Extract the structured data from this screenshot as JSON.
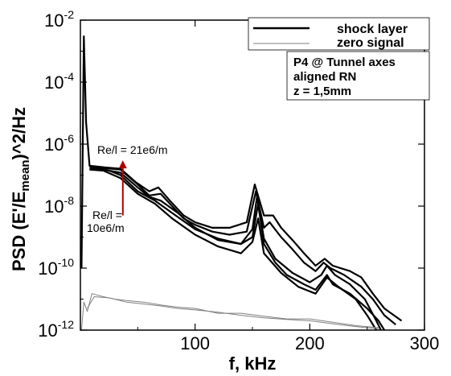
{
  "chart_data": {
    "type": "line",
    "xlabel": "f, kHz",
    "ylabel_parts": {
      "pre": "PSD (E'/E",
      "sub": "mean",
      "post": ")^2/Hz"
    },
    "xlim": [
      0,
      300
    ],
    "ylim": [
      1e-12,
      0.01
    ],
    "yscale": "log",
    "x_ticks": [
      100,
      200,
      300
    ],
    "y_ticks": [
      {
        "base": "10",
        "exp": "-2",
        "value": 0.01
      },
      {
        "base": "10",
        "exp": "-4",
        "value": 0.0001
      },
      {
        "base": "10",
        "exp": "-6",
        "value": 1e-06
      },
      {
        "base": "10",
        "exp": "-8",
        "value": 1e-08
      },
      {
        "base": "10",
        "exp": "-10",
        "value": 1e-10
      },
      {
        "base": "10",
        "exp": "-12",
        "value": 1e-12
      }
    ],
    "legend": {
      "position": "top-right",
      "entries": [
        {
          "label": "shock layer",
          "color": "#000000",
          "width": 2.5
        },
        {
          "label": "zero signal",
          "color": "#808080",
          "width": 1
        }
      ]
    },
    "info_box": [
      "P4 @ Tunnel axes",
      "aligned RN",
      "z = 1,5mm"
    ],
    "annotations": {
      "upper": "Re/l = 21e6/m",
      "lower_1": "Re/l =",
      "lower_2": "10e6/m",
      "arrow": {
        "x": 37,
        "y_from": 5e-09,
        "y_to": 3e-07,
        "color": "#b00000"
      }
    },
    "series": [
      {
        "style": "shock",
        "color": "#000000",
        "points": [
          [
            1,
            1e-10
          ],
          [
            3,
            0.003
          ],
          [
            5,
            5e-06
          ],
          [
            8,
            2e-07
          ],
          [
            15,
            1.7e-07
          ],
          [
            25,
            1.4e-07
          ],
          [
            35,
            1e-07
          ],
          [
            50,
            3e-08
          ],
          [
            65,
            1.5e-08
          ],
          [
            80,
            6e-09
          ],
          [
            100,
            1.8e-09
          ],
          [
            120,
            9e-10
          ],
          [
            140,
            6e-10
          ],
          [
            150,
            1e-09
          ],
          [
            155,
            1.2e-08
          ],
          [
            160,
            6e-10
          ],
          [
            170,
            1.5e-10
          ],
          [
            180,
            6e-11
          ],
          [
            195,
            3e-11
          ],
          [
            205,
            2e-11
          ],
          [
            215,
            6e-11
          ],
          [
            220,
            3e-11
          ],
          [
            235,
            1.5e-11
          ],
          [
            250,
            5e-12
          ],
          [
            260,
            2e-12
          ],
          [
            265,
            1e-12
          ]
        ]
      },
      {
        "style": "shock",
        "color": "#000000",
        "points": [
          [
            8,
            1.5e-07
          ],
          [
            20,
            1.4e-07
          ],
          [
            35,
            8e-08
          ],
          [
            50,
            2.5e-08
          ],
          [
            65,
            1.2e-08
          ],
          [
            80,
            4e-09
          ],
          [
            100,
            1.2e-09
          ],
          [
            120,
            5e-10
          ],
          [
            140,
            3e-10
          ],
          [
            150,
            7e-10
          ],
          [
            155,
            4e-09
          ],
          [
            160,
            3e-10
          ],
          [
            175,
            7e-11
          ],
          [
            190,
            2.5e-11
          ],
          [
            205,
            1.5e-11
          ],
          [
            215,
            5e-11
          ],
          [
            225,
            2.5e-11
          ],
          [
            240,
            1e-11
          ],
          [
            250,
            3e-12
          ],
          [
            258,
            1e-12
          ]
        ]
      },
      {
        "style": "shock",
        "color": "#000000",
        "points": [
          [
            8,
            1.8e-07
          ],
          [
            20,
            1.7e-07
          ],
          [
            35,
            1.5e-07
          ],
          [
            50,
            5e-08
          ],
          [
            60,
            2.2e-08
          ],
          [
            70,
            2.5e-08
          ],
          [
            80,
            1e-08
          ],
          [
            90,
            4e-09
          ],
          [
            100,
            2.5e-09
          ],
          [
            115,
            1.5e-09
          ],
          [
            130,
            1.2e-09
          ],
          [
            145,
            1.5e-09
          ],
          [
            153,
            3e-08
          ],
          [
            160,
            2e-09
          ],
          [
            165,
            3e-09
          ],
          [
            175,
            1e-09
          ],
          [
            185,
            4e-10
          ],
          [
            195,
            1.5e-10
          ],
          [
            205,
            8e-11
          ],
          [
            212,
            1.5e-10
          ],
          [
            218,
            1e-10
          ],
          [
            230,
            6e-11
          ],
          [
            245,
            2.5e-11
          ],
          [
            255,
            1e-11
          ],
          [
            265,
            3e-12
          ],
          [
            275,
            1.5e-12
          ]
        ]
      },
      {
        "style": "shock",
        "color": "#000000",
        "points": [
          [
            8,
            1.6e-07
          ],
          [
            20,
            1.5e-07
          ],
          [
            35,
            1.2e-07
          ],
          [
            50,
            4e-08
          ],
          [
            60,
            2e-08
          ],
          [
            70,
            1.5e-08
          ],
          [
            85,
            6e-09
          ],
          [
            100,
            2e-09
          ],
          [
            120,
            8e-10
          ],
          [
            140,
            6e-10
          ],
          [
            150,
            1.8e-09
          ],
          [
            154,
            2e-08
          ],
          [
            160,
            9e-10
          ],
          [
            170,
            2e-10
          ],
          [
            185,
            7e-11
          ],
          [
            200,
            3.5e-11
          ],
          [
            210,
            6e-11
          ],
          [
            215,
            1.2e-10
          ],
          [
            222,
            6e-11
          ],
          [
            235,
            3e-11
          ],
          [
            248,
            1e-11
          ],
          [
            258,
            2e-12
          ],
          [
            262,
            1e-12
          ]
        ]
      },
      {
        "style": "shock",
        "color": "#000000",
        "points": [
          [
            8,
            2e-07
          ],
          [
            20,
            1.8e-07
          ],
          [
            35,
            1.6e-07
          ],
          [
            48,
            6e-08
          ],
          [
            60,
            3e-08
          ],
          [
            68,
            4e-08
          ],
          [
            78,
            1.5e-08
          ],
          [
            90,
            5e-09
          ],
          [
            100,
            3e-09
          ],
          [
            115,
            2e-09
          ],
          [
            130,
            2e-09
          ],
          [
            145,
            3e-09
          ],
          [
            152,
            5e-08
          ],
          [
            160,
            5e-09
          ],
          [
            168,
            5e-09
          ],
          [
            175,
            2e-09
          ],
          [
            185,
            8e-10
          ],
          [
            195,
            3e-10
          ],
          [
            205,
            1.2e-10
          ],
          [
            213,
            2e-10
          ],
          [
            220,
            1.2e-10
          ],
          [
            235,
            8e-11
          ],
          [
            245,
            5e-11
          ],
          [
            255,
            1.5e-11
          ],
          [
            265,
            5e-12
          ],
          [
            280,
            2e-12
          ]
        ]
      },
      {
        "style": "zero",
        "color": "#808080",
        "points": [
          [
            1,
            1e-12
          ],
          [
            3,
            8e-12
          ],
          [
            6,
            4e-12
          ],
          [
            10,
            1.5e-11
          ],
          [
            20,
            1.2e-11
          ],
          [
            30,
            1e-11
          ],
          [
            40,
            9e-12
          ],
          [
            55,
            8e-12
          ],
          [
            70,
            6.5e-12
          ],
          [
            85,
            5.5e-12
          ],
          [
            100,
            5e-12
          ],
          [
            120,
            3.5e-12
          ],
          [
            140,
            3.5e-12
          ],
          [
            160,
            2.8e-12
          ],
          [
            180,
            2.3e-12
          ],
          [
            200,
            2.3e-12
          ],
          [
            220,
            1.8e-12
          ],
          [
            240,
            1.4e-12
          ],
          [
            260,
            1.2e-12
          ]
        ]
      },
      {
        "style": "zero",
        "color": "#808080",
        "points": [
          [
            6,
            5e-12
          ],
          [
            12,
            1.2e-11
          ],
          [
            25,
            1.1e-11
          ],
          [
            40,
            8e-12
          ],
          [
            55,
            7e-12
          ],
          [
            70,
            6e-12
          ],
          [
            85,
            5e-12
          ],
          [
            100,
            4.5e-12
          ],
          [
            120,
            3.8e-12
          ],
          [
            140,
            3e-12
          ],
          [
            160,
            2.5e-12
          ],
          [
            180,
            2.2e-12
          ],
          [
            200,
            2e-12
          ],
          [
            220,
            1.6e-12
          ],
          [
            240,
            1.3e-12
          ],
          [
            260,
            1.1e-12
          ]
        ]
      }
    ]
  }
}
